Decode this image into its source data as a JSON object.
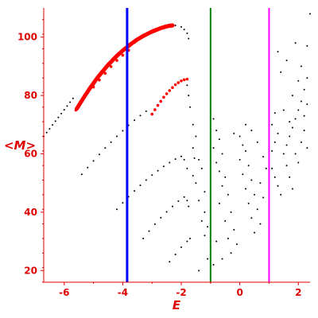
{
  "chart_data": {
    "type": "scatter",
    "xlabel": "E",
    "ylabel": "<M>",
    "xlim": [
      -6.7,
      2.4
    ],
    "ylim": [
      16,
      110
    ],
    "x_ticks": [
      -6,
      -4,
      -2,
      0,
      2
    ],
    "y_ticks": [
      20,
      40,
      60,
      80,
      100
    ],
    "grid": false,
    "colors": {
      "axis": "#e00000",
      "ticks_text": "#e00000",
      "red_series": "#ff0000",
      "black_series": "#000000",
      "blue_line": "#0000ff",
      "green_line": "#008000",
      "magenta_line": "#ff00ff"
    },
    "vertical_lines": [
      {
        "x": -3.85,
        "color": "#0000ff",
        "width": 3
      },
      {
        "x": -1.0,
        "color": "#008000",
        "width": 2
      },
      {
        "x": 1.0,
        "color": "#ff00ff",
        "width": 2
      }
    ],
    "series": [
      {
        "color": "#ff0000",
        "points": [
          [
            -5.6,
            75.0
          ],
          [
            -5.5,
            76.6
          ],
          [
            -5.4,
            78.2
          ],
          [
            -5.3,
            79.8
          ],
          [
            -5.2,
            81.3
          ],
          [
            -5.1,
            82.8
          ],
          [
            -5.0,
            84.2
          ],
          [
            -4.9,
            85.6
          ],
          [
            -4.8,
            86.9
          ],
          [
            -4.7,
            88.1
          ],
          [
            -4.6,
            89.3
          ],
          [
            -4.5,
            90.5
          ],
          [
            -4.4,
            91.5
          ],
          [
            -4.3,
            92.6
          ],
          [
            -4.2,
            93.6
          ],
          [
            -4.1,
            94.5
          ],
          [
            -4.0,
            95.4
          ],
          [
            -3.9,
            96.2
          ],
          [
            -3.8,
            97.0
          ],
          [
            -3.7,
            97.8
          ],
          [
            -3.6,
            98.5
          ],
          [
            -3.5,
            99.2
          ],
          [
            -3.4,
            99.8
          ],
          [
            -3.3,
            100.4
          ],
          [
            -3.2,
            100.9
          ],
          [
            -3.1,
            101.4
          ],
          [
            -3.0,
            101.9
          ],
          [
            -2.9,
            102.3
          ],
          [
            -2.8,
            102.7
          ],
          [
            -2.7,
            103.1
          ],
          [
            -2.6,
            103.4
          ],
          [
            -2.5,
            103.7
          ],
          [
            -2.4,
            103.9
          ],
          [
            -2.3,
            104.0
          ],
          [
            -5.0,
            82.9
          ],
          [
            -4.8,
            85.3
          ],
          [
            -4.6,
            87.6
          ],
          [
            -4.4,
            89.9
          ],
          [
            -4.2,
            92.0
          ],
          [
            -4.0,
            93.8
          ],
          [
            -3.8,
            95.5
          ],
          [
            -3.0,
            73.6
          ],
          [
            -2.9,
            75.1
          ],
          [
            -2.8,
            76.6
          ],
          [
            -2.7,
            78.0
          ],
          [
            -2.6,
            79.4
          ],
          [
            -2.5,
            80.6
          ],
          [
            -2.4,
            81.7
          ],
          [
            -2.3,
            82.7
          ],
          [
            -2.2,
            83.7
          ],
          [
            -2.1,
            84.4
          ],
          [
            -2.0,
            85.0
          ],
          [
            -1.9,
            85.4
          ],
          [
            -1.8,
            85.6
          ]
        ]
      },
      {
        "color": "#000000",
        "points": [
          [
            -6.7,
            66.0
          ],
          [
            -6.6,
            67.3
          ],
          [
            -6.5,
            68.6
          ],
          [
            -6.4,
            69.9
          ],
          [
            -6.3,
            71.2
          ],
          [
            -6.2,
            72.5
          ],
          [
            -6.1,
            73.8
          ],
          [
            -6.0,
            75.1
          ],
          [
            -5.9,
            76.4
          ],
          [
            -5.8,
            77.7
          ],
          [
            -5.7,
            79.0
          ],
          [
            -2.2,
            104.0
          ],
          [
            -2.0,
            103.5
          ],
          [
            -1.9,
            102.6
          ],
          [
            -1.8,
            101.3
          ],
          [
            -1.75,
            99.5
          ],
          [
            -5.4,
            53.0
          ],
          [
            -5.2,
            55.3
          ],
          [
            -5.0,
            57.6
          ],
          [
            -4.8,
            59.8
          ],
          [
            -4.6,
            62.0
          ],
          [
            -4.4,
            64.0
          ],
          [
            -4.2,
            66.0
          ],
          [
            -4.0,
            67.9
          ],
          [
            -3.8,
            69.8
          ],
          [
            -3.6,
            71.5
          ],
          [
            -3.4,
            73.1
          ],
          [
            -3.2,
            74.6
          ],
          [
            -1.8,
            83.5
          ],
          [
            -1.75,
            80.0
          ],
          [
            -1.7,
            76.0
          ],
          [
            -4.2,
            41.0
          ],
          [
            -4.0,
            43.2
          ],
          [
            -3.8,
            45.3
          ],
          [
            -3.6,
            47.3
          ],
          [
            -3.4,
            49.2
          ],
          [
            -3.2,
            51.0
          ],
          [
            -3.0,
            52.7
          ],
          [
            -2.8,
            54.2
          ],
          [
            -2.6,
            55.7
          ],
          [
            -2.4,
            57.0
          ],
          [
            -2.2,
            58.2
          ],
          [
            -2.0,
            59.1
          ],
          [
            -1.9,
            58.0
          ],
          [
            -1.8,
            55.0
          ],
          [
            -3.3,
            31.0
          ],
          [
            -3.1,
            33.5
          ],
          [
            -2.9,
            35.9
          ],
          [
            -2.7,
            38.1
          ],
          [
            -2.5,
            40.1
          ],
          [
            -2.3,
            42.0
          ],
          [
            -2.1,
            43.8
          ],
          [
            -1.9,
            45.2
          ],
          [
            -1.8,
            44.0
          ],
          [
            -1.75,
            42.0
          ],
          [
            -2.4,
            23.0
          ],
          [
            -2.2,
            25.5
          ],
          [
            -2.0,
            28.0
          ],
          [
            -1.8,
            30.0
          ],
          [
            -1.7,
            31.0
          ],
          [
            -1.6,
            70.0
          ],
          [
            -1.5,
            66.0
          ],
          [
            -1.6,
            62.0
          ],
          [
            -1.4,
            58.0
          ],
          [
            -1.3,
            55.0
          ],
          [
            -1.5,
            50.0
          ],
          [
            -1.2,
            47.0
          ],
          [
            -1.4,
            44.0
          ],
          [
            -1.2,
            40.0
          ],
          [
            -1.3,
            37.0
          ],
          [
            -1.1,
            35.0
          ],
          [
            -1.2,
            32.0
          ],
          [
            -1.0,
            28.0
          ],
          [
            -1.1,
            24.0
          ],
          [
            -0.9,
            22.0
          ],
          [
            -1.4,
            20.0
          ],
          [
            -1.55,
            58.5
          ],
          [
            -1.6,
            52.5
          ],
          [
            -1.0,
            75.0
          ],
          [
            -0.9,
            72.0
          ],
          [
            -0.8,
            68.0
          ],
          [
            -0.7,
            65.0
          ],
          [
            -0.9,
            62.0
          ],
          [
            -0.6,
            60.0
          ],
          [
            -0.8,
            57.0
          ],
          [
            -0.7,
            54.0
          ],
          [
            -0.5,
            52.0
          ],
          [
            -0.6,
            49.0
          ],
          [
            -0.4,
            46.0
          ],
          [
            -0.7,
            43.0
          ],
          [
            -0.3,
            40.0
          ],
          [
            -0.5,
            37.0
          ],
          [
            -0.2,
            34.0
          ],
          [
            -0.4,
            31.0
          ],
          [
            -0.1,
            29.0
          ],
          [
            -0.3,
            26.0
          ],
          [
            -0.6,
            24.0
          ],
          [
            -0.8,
            30.0
          ],
          [
            0.0,
            66.0
          ],
          [
            0.1,
            63.0
          ],
          [
            0.2,
            61.0
          ],
          [
            0.0,
            58.0
          ],
          [
            0.3,
            56.0
          ],
          [
            0.1,
            53.0
          ],
          [
            0.4,
            51.0
          ],
          [
            0.2,
            48.0
          ],
          [
            0.5,
            46.0
          ],
          [
            0.3,
            43.0
          ],
          [
            0.6,
            41.0
          ],
          [
            0.4,
            38.0
          ],
          [
            0.7,
            36.0
          ],
          [
            0.5,
            33.0
          ],
          [
            0.2,
            70.0
          ],
          [
            0.4,
            68.0
          ],
          [
            -0.2,
            67.0
          ],
          [
            0.6,
            64.0
          ],
          [
            0.8,
            59.0
          ],
          [
            0.9,
            55.0
          ],
          [
            0.7,
            50.0
          ],
          [
            0.8,
            45.0
          ],
          [
            1.0,
            58.0
          ],
          [
            1.1,
            61.0
          ],
          [
            1.2,
            64.0
          ],
          [
            1.3,
            67.0
          ],
          [
            1.1,
            55.0
          ],
          [
            1.2,
            52.0
          ],
          [
            1.3,
            49.0
          ],
          [
            1.4,
            46.0
          ],
          [
            1.5,
            60.0
          ],
          [
            1.6,
            63.0
          ],
          [
            1.7,
            66.0
          ],
          [
            1.8,
            69.0
          ],
          [
            1.9,
            72.0
          ],
          [
            2.0,
            75.0
          ],
          [
            2.1,
            78.0
          ],
          [
            2.2,
            82.0
          ],
          [
            2.3,
            86.0
          ],
          [
            1.6,
            56.0
          ],
          [
            1.7,
            52.0
          ],
          [
            1.8,
            48.0
          ],
          [
            1.9,
            60.0
          ],
          [
            2.0,
            57.0
          ],
          [
            2.1,
            64.0
          ],
          [
            2.2,
            68.0
          ],
          [
            2.3,
            62.0
          ],
          [
            2.2,
            73.0
          ],
          [
            2.3,
            77.0
          ],
          [
            1.4,
            88.0
          ],
          [
            1.3,
            95.0
          ],
          [
            1.1,
            70.0
          ],
          [
            1.5,
            75.0
          ],
          [
            1.8,
            80.0
          ],
          [
            2.1,
            90.0
          ],
          [
            2.4,
            108.0
          ],
          [
            2.3,
            97.0
          ],
          [
            1.9,
            98.0
          ],
          [
            1.6,
            92.0
          ],
          [
            2.0,
            85.0
          ],
          [
            1.7,
            71.0
          ],
          [
            1.2,
            74.0
          ]
        ]
      }
    ]
  }
}
